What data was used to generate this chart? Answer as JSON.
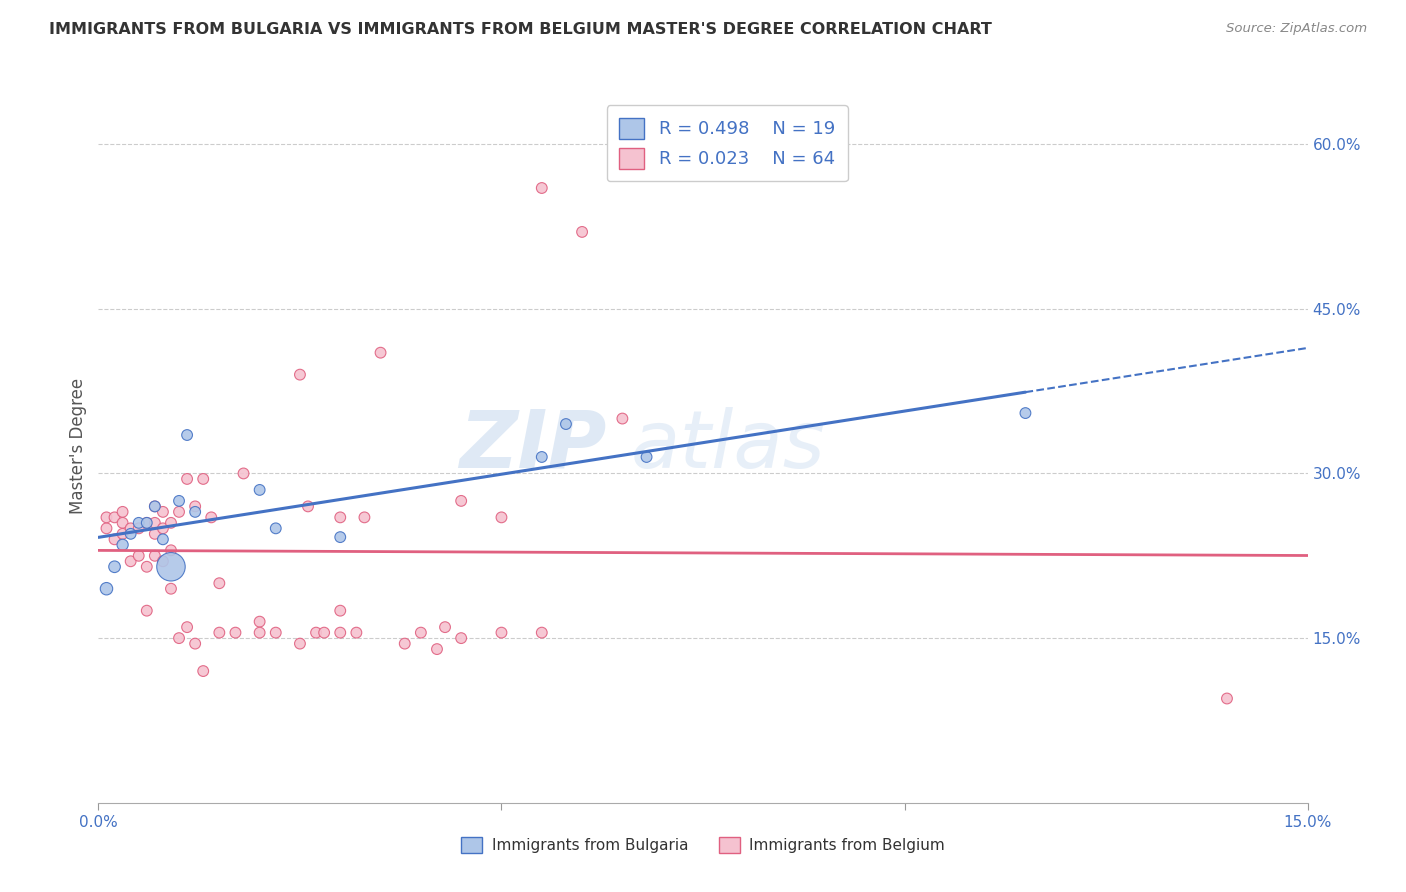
{
  "title": "IMMIGRANTS FROM BULGARIA VS IMMIGRANTS FROM BELGIUM MASTER'S DEGREE CORRELATION CHART",
  "source_text": "Source: ZipAtlas.com",
  "ylabel": "Master's Degree",
  "xlim": [
    0.0,
    0.15
  ],
  "ylim": [
    0.0,
    0.65
  ],
  "xticks": [
    0.0,
    0.05,
    0.1,
    0.15
  ],
  "xtick_labels": [
    "0.0%",
    "",
    "",
    "15.0%"
  ],
  "yticks": [
    0.15,
    0.3,
    0.45,
    0.6
  ],
  "ytick_labels": [
    "15.0%",
    "30.0%",
    "45.0%",
    "60.0%"
  ],
  "legend_R_bulgaria": "R = 0.498",
  "legend_N_bulgaria": "N = 19",
  "legend_R_belgium": "R = 0.023",
  "legend_N_belgium": "N = 64",
  "legend_label_bulgaria": "Immigrants from Bulgaria",
  "legend_label_belgium": "Immigrants from Belgium",
  "color_bulgaria": "#aec6e8",
  "color_belgium": "#f5c2d0",
  "color_regression_bulgaria": "#4472c4",
  "color_regression_belgium": "#e06080",
  "color_axis_labels": "#4472c4",
  "color_text": "#4472c4",
  "watermark_zip": "ZIP",
  "watermark_atlas": "atlas",
  "bulgaria_x": [
    0.001,
    0.002,
    0.003,
    0.004,
    0.005,
    0.006,
    0.007,
    0.008,
    0.009,
    0.01,
    0.011,
    0.012,
    0.02,
    0.022,
    0.03,
    0.055,
    0.058,
    0.068,
    0.115
  ],
  "bulgaria_y": [
    0.195,
    0.215,
    0.235,
    0.245,
    0.255,
    0.255,
    0.27,
    0.24,
    0.215,
    0.275,
    0.335,
    0.265,
    0.285,
    0.25,
    0.242,
    0.315,
    0.345,
    0.315,
    0.355
  ],
  "bulgaria_sizes": [
    80,
    70,
    65,
    60,
    60,
    60,
    60,
    60,
    420,
    60,
    60,
    60,
    60,
    60,
    60,
    60,
    60,
    60,
    60
  ],
  "belgium_x": [
    0.001,
    0.001,
    0.002,
    0.002,
    0.003,
    0.003,
    0.003,
    0.004,
    0.004,
    0.005,
    0.005,
    0.006,
    0.006,
    0.006,
    0.007,
    0.007,
    0.007,
    0.007,
    0.008,
    0.008,
    0.008,
    0.009,
    0.009,
    0.009,
    0.01,
    0.01,
    0.011,
    0.011,
    0.012,
    0.012,
    0.013,
    0.013,
    0.014,
    0.015,
    0.015,
    0.017,
    0.018,
    0.02,
    0.02,
    0.022,
    0.025,
    0.025,
    0.026,
    0.027,
    0.028,
    0.03,
    0.03,
    0.03,
    0.032,
    0.033,
    0.035,
    0.038,
    0.04,
    0.042,
    0.043,
    0.045,
    0.045,
    0.05,
    0.05,
    0.055,
    0.055,
    0.06,
    0.065,
    0.14
  ],
  "belgium_y": [
    0.25,
    0.26,
    0.24,
    0.26,
    0.255,
    0.245,
    0.265,
    0.22,
    0.25,
    0.25,
    0.225,
    0.215,
    0.175,
    0.255,
    0.245,
    0.225,
    0.27,
    0.255,
    0.25,
    0.22,
    0.265,
    0.23,
    0.255,
    0.195,
    0.265,
    0.15,
    0.16,
    0.295,
    0.27,
    0.145,
    0.295,
    0.12,
    0.26,
    0.2,
    0.155,
    0.155,
    0.3,
    0.165,
    0.155,
    0.155,
    0.39,
    0.145,
    0.27,
    0.155,
    0.155,
    0.175,
    0.26,
    0.155,
    0.155,
    0.26,
    0.41,
    0.145,
    0.155,
    0.14,
    0.16,
    0.275,
    0.15,
    0.26,
    0.155,
    0.56,
    0.155,
    0.52,
    0.35,
    0.095
  ],
  "belgium_sizes": [
    60,
    60,
    60,
    60,
    60,
    60,
    60,
    60,
    60,
    60,
    60,
    60,
    60,
    60,
    60,
    60,
    60,
    60,
    60,
    60,
    60,
    60,
    60,
    60,
    60,
    60,
    60,
    60,
    60,
    60,
    60,
    60,
    60,
    60,
    60,
    60,
    60,
    60,
    60,
    60,
    60,
    60,
    60,
    60,
    60,
    60,
    60,
    60,
    60,
    60,
    60,
    60,
    60,
    60,
    60,
    60,
    60,
    60,
    60,
    60,
    60,
    60,
    60,
    60
  ]
}
